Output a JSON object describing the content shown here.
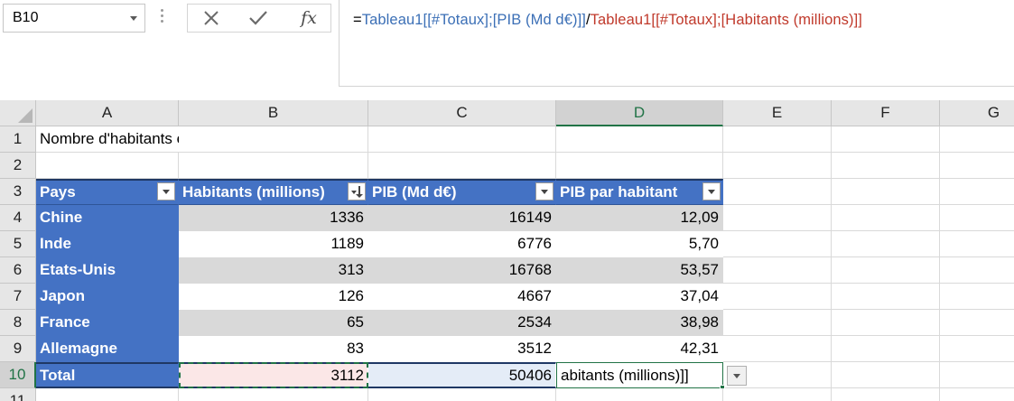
{
  "formula_bar": {
    "name_box": "B10",
    "cancel_icon": "close-icon",
    "enter_icon": "check-icon",
    "function_label": "fx",
    "formula": {
      "equals": "=",
      "part1": "Tableau1[[#Totaux];[PIB (Md d€)]]",
      "operator": "/",
      "part2": "Tableau1[[#Totaux];[Habitants (millions)]]"
    }
  },
  "columns": [
    "A",
    "B",
    "C",
    "D",
    "E",
    "F",
    "G"
  ],
  "rows": [
    "1",
    "2",
    "3",
    "4",
    "5",
    "6",
    "7",
    "8",
    "9",
    "10",
    "11"
  ],
  "title": "Nombre d'habitants et PIB",
  "table": {
    "headers": [
      "Pays",
      "Habitants (millions)",
      "PIB (Md d€)",
      "PIB par habitant"
    ],
    "rows": [
      [
        "Chine",
        "1336",
        "16149",
        "12,09"
      ],
      [
        "Inde",
        "1189",
        "6776",
        "5,70"
      ],
      [
        "Etats-Unis",
        "313",
        "16768",
        "53,57"
      ],
      [
        "Japon",
        "126",
        "4667",
        "37,04"
      ],
      [
        "France",
        "65",
        "2534",
        "38,98"
      ],
      [
        "Allemagne",
        "83",
        "3512",
        "42,31"
      ]
    ],
    "total": [
      "Total",
      "3112",
      "50406",
      "abitants (millions)]]"
    ]
  },
  "colors": {
    "table_header": "#4472c4",
    "band": "#d9d9d9",
    "selection": "#217346",
    "formula_ref_blue": "#3b6fb6",
    "formula_ref_red": "#c0392b"
  }
}
